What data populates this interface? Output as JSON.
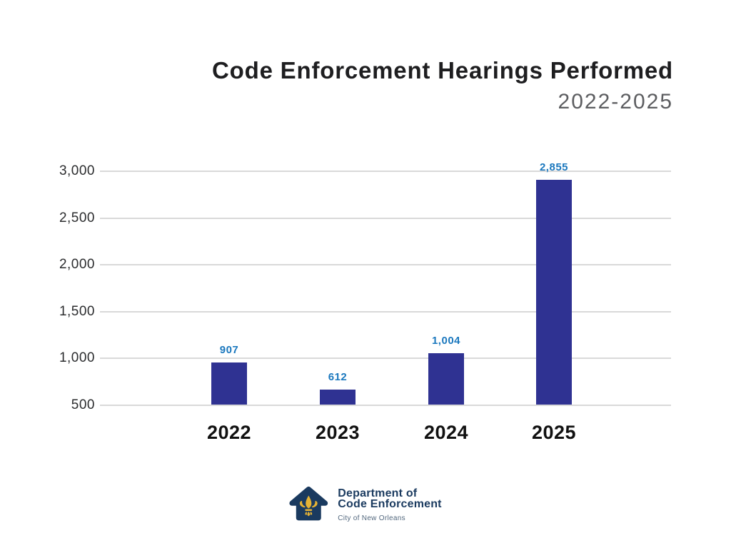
{
  "header": {
    "title": "Code Enforcement Hearings Performed",
    "subtitle": "2022-2025"
  },
  "chart_data": {
    "type": "bar",
    "title": "Code Enforcement Hearings Performed",
    "subtitle": "2022-2025",
    "categories": [
      "2022",
      "2023",
      "2024",
      "2025"
    ],
    "values": [
      907,
      612,
      1004,
      2855
    ],
    "value_labels": [
      "907",
      "612",
      "1,004",
      "2,855"
    ],
    "yticks": [
      3000,
      2500,
      2000,
      1500,
      1000,
      500
    ],
    "ytick_labels": [
      "3,000",
      "2,500",
      "2,000",
      "1,500",
      "1,000",
      "500"
    ],
    "ylim": [
      450,
      3050
    ],
    "tick_step": 500,
    "grid": "horizontal",
    "legend": "none",
    "xlabel": "",
    "ylabel": "",
    "bar_color": "#2f3292",
    "value_label_color": "#1b78be",
    "gridline_color": "#d9d9d9"
  },
  "footer_logo": {
    "org_line1": "Department of",
    "org_line2": "Code Enforcement",
    "city": "City of New Orleans",
    "icon": "house-fleur-de-lis-icon",
    "colors": {
      "navy": "#1a3a5f",
      "gold": "#e6b335"
    }
  }
}
